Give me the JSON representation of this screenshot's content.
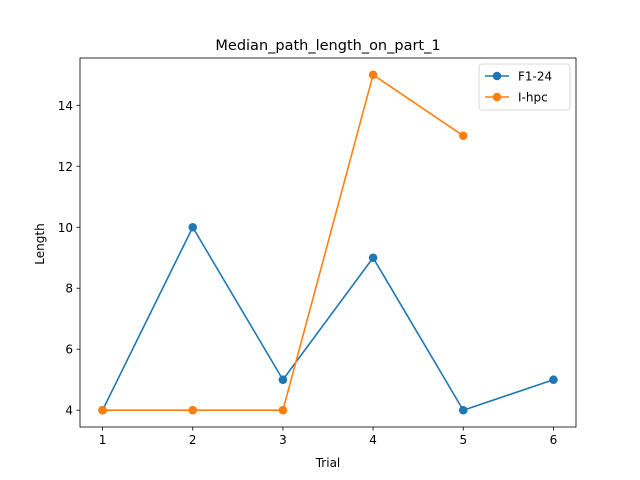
{
  "chart_data": {
    "type": "line",
    "title": "Median_path_length_on_part_1",
    "xlabel": "Trial",
    "ylabel": "Length",
    "xlim": [
      0.75,
      6.25
    ],
    "ylim": [
      3.45,
      15.55
    ],
    "x_ticks": [
      1,
      2,
      3,
      4,
      5,
      6
    ],
    "y_ticks": [
      4,
      6,
      8,
      10,
      12,
      14
    ],
    "grid": false,
    "legend_position": "upper right",
    "series": [
      {
        "name": "F1-24",
        "color": "#1f77b4",
        "x": [
          1,
          2,
          3,
          4,
          5,
          6
        ],
        "values": [
          4,
          10,
          5,
          9,
          4,
          5
        ]
      },
      {
        "name": "I-hpc",
        "color": "#ff7f0e",
        "x": [
          1,
          2,
          3,
          4,
          5
        ],
        "values": [
          4,
          4,
          4,
          15,
          13
        ]
      }
    ]
  }
}
